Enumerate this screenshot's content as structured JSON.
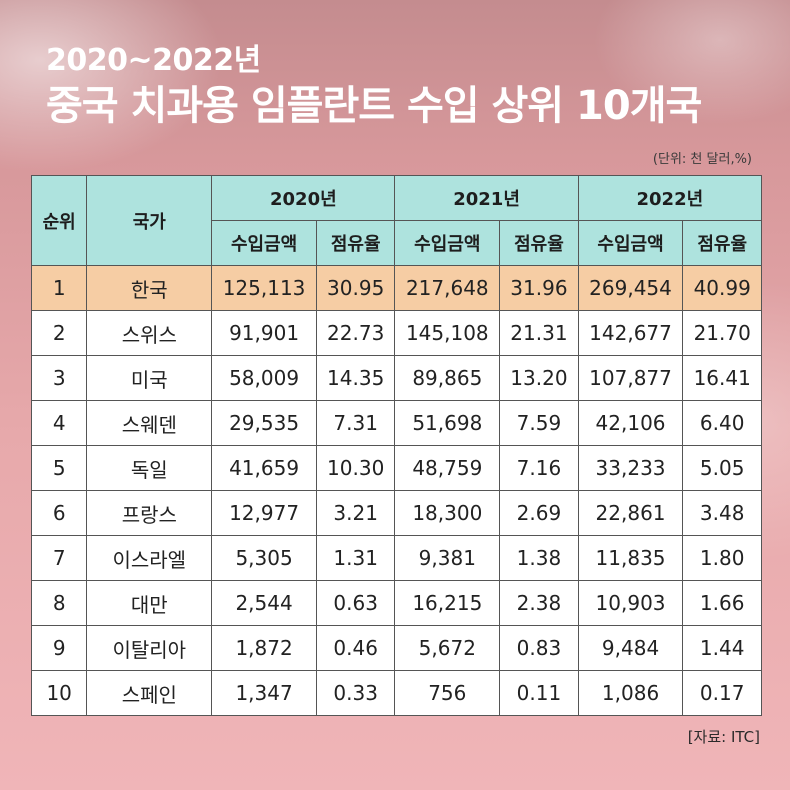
{
  "header": {
    "subtitle": "2020~2022년",
    "title": "중국 치과용 임플란트 수입 상위 10개국",
    "unit_note": "(단위: 천 달러,%)"
  },
  "table": {
    "col_rank": "순위",
    "col_country": "국가",
    "years": [
      "2020년",
      "2021년",
      "2022년"
    ],
    "sub_amount": "수입금액",
    "sub_share": "점유율",
    "rows": [
      {
        "rank": "1",
        "country": "한국",
        "v": [
          "125,113",
          "30.95",
          "217,648",
          "31.96",
          "269,454",
          "40.99"
        ]
      },
      {
        "rank": "2",
        "country": "스위스",
        "v": [
          "91,901",
          "22.73",
          "145,108",
          "21.31",
          "142,677",
          "21.70"
        ]
      },
      {
        "rank": "3",
        "country": "미국",
        "v": [
          "58,009",
          "14.35",
          "89,865",
          "13.20",
          "107,877",
          "16.41"
        ]
      },
      {
        "rank": "4",
        "country": "스웨덴",
        "v": [
          "29,535",
          "7.31",
          "51,698",
          "7.59",
          "42,106",
          "6.40"
        ]
      },
      {
        "rank": "5",
        "country": "독일",
        "v": [
          "41,659",
          "10.30",
          "48,759",
          "7.16",
          "33,233",
          "5.05"
        ]
      },
      {
        "rank": "6",
        "country": "프랑스",
        "v": [
          "12,977",
          "3.21",
          "18,300",
          "2.69",
          "22,861",
          "3.48"
        ]
      },
      {
        "rank": "7",
        "country": "이스라엘",
        "v": [
          "5,305",
          "1.31",
          "9,381",
          "1.38",
          "11,835",
          "1.80"
        ]
      },
      {
        "rank": "8",
        "country": "대만",
        "v": [
          "2,544",
          "0.63",
          "16,215",
          "2.38",
          "10,903",
          "1.66"
        ]
      },
      {
        "rank": "9",
        "country": "이탈리아",
        "v": [
          "1,872",
          "0.46",
          "5,672",
          "0.83",
          "9,484",
          "1.44"
        ]
      },
      {
        "rank": "10",
        "country": "스페인",
        "v": [
          "1,347",
          "0.33",
          "756",
          "0.11",
          "1,086",
          "0.17"
        ]
      }
    ]
  },
  "footer": {
    "source": "[자료: ITC]"
  },
  "colors": {
    "header_fill": "#aee3de",
    "highlight_fill": "#f6cda4"
  }
}
